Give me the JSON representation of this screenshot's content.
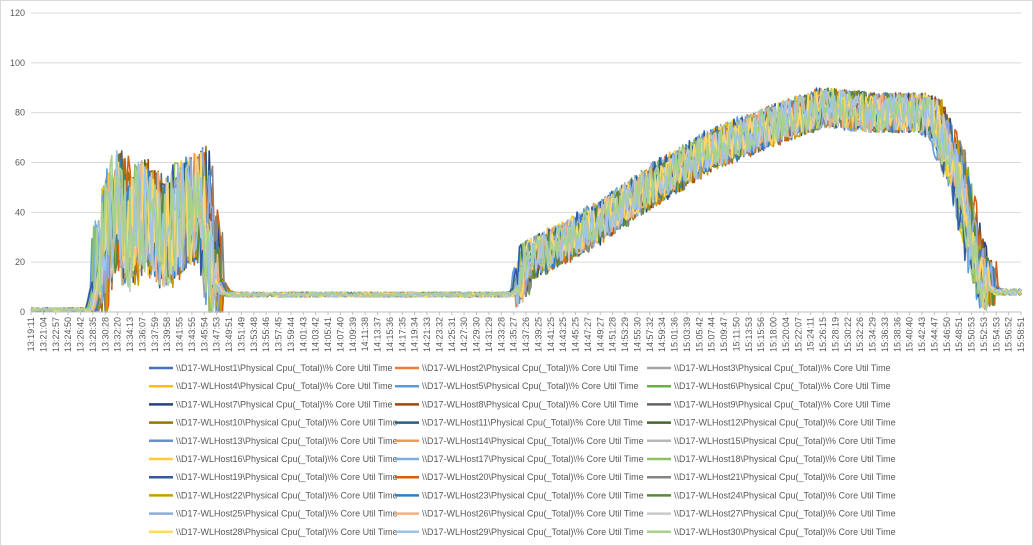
{
  "chart_data": {
    "type": "line",
    "title": "",
    "xlabel": "",
    "ylabel": "",
    "ylim": [
      0,
      120
    ],
    "yticks": [
      0,
      20,
      40,
      60,
      80,
      100,
      120
    ],
    "grid": "horizontal",
    "legend_position": "bottom",
    "x_tick_labels": [
      "13:19:11",
      "13:21:04",
      "13:22:57",
      "13:24:50",
      "13:26:42",
      "13:28:35",
      "13:30:28",
      "13:32:20",
      "13:34:13",
      "13:36:07",
      "13:37:59",
      "13:39:58",
      "13:41:55",
      "13:43:55",
      "13:45:54",
      "13:47:53",
      "13:49:51",
      "13:51:49",
      "13:53:48",
      "13:55:46",
      "13:57:45",
      "13:59:44",
      "14:01:43",
      "14:03:42",
      "14:05:41",
      "14:07:40",
      "14:09:39",
      "14:11:38",
      "14:13:37",
      "14:15:36",
      "14:17:35",
      "14:19:34",
      "14:21:33",
      "14:23:32",
      "14:25:31",
      "14:27:30",
      "14:29:30",
      "14:31:29",
      "14:33:28",
      "14:35:27",
      "14:37:26",
      "14:39:25",
      "14:41:25",
      "14:43:25",
      "14:45:25",
      "14:47:27",
      "14:49:27",
      "14:51:28",
      "14:53:29",
      "14:55:30",
      "14:57:32",
      "14:59:34",
      "15:01:36",
      "15:03:39",
      "15:05:42",
      "15:07:44",
      "15:09:47",
      "15:11:50",
      "15:13:53",
      "15:15:56",
      "15:18:00",
      "15:20:04",
      "15:22:07",
      "15:24:11",
      "15:26:15",
      "15:28:19",
      "15:30:22",
      "15:32:26",
      "15:34:29",
      "15:36:33",
      "15:38:36",
      "15:40:40",
      "15:42:43",
      "15:44:47",
      "15:46:50",
      "15:48:51",
      "15:50:53",
      "15:52:53",
      "15:54:53",
      "15:56:52",
      "15:58:51"
    ],
    "profile_points": [
      [
        0,
        1
      ],
      [
        5,
        1
      ],
      [
        6,
        25
      ],
      [
        7,
        45
      ],
      [
        8,
        30
      ],
      [
        9,
        40
      ],
      [
        10,
        35
      ],
      [
        11,
        30
      ],
      [
        12,
        38
      ],
      [
        13,
        40
      ],
      [
        14,
        45
      ],
      [
        14.7,
        15
      ],
      [
        15.5,
        8
      ],
      [
        16,
        7
      ],
      [
        39,
        7
      ],
      [
        39.6,
        10
      ],
      [
        40,
        20
      ],
      [
        45,
        33
      ],
      [
        50,
        50
      ],
      [
        55,
        65
      ],
      [
        60,
        75
      ],
      [
        64,
        82
      ],
      [
        68,
        80
      ],
      [
        72,
        80
      ],
      [
        73,
        78
      ],
      [
        75,
        55
      ],
      [
        76,
        30
      ],
      [
        77,
        12
      ],
      [
        78,
        8
      ],
      [
        80,
        8
      ]
    ],
    "series": [
      {
        "name": "\\\\D17-WLHost1\\Physical Cpu(_Total)\\% Core Util Time",
        "color": "#4472c4"
      },
      {
        "name": "\\\\D17-WLHost2\\Physical Cpu(_Total)\\% Core Util Time",
        "color": "#ed7d31"
      },
      {
        "name": "\\\\D17-WLHost3\\Physical Cpu(_Total)\\% Core Util Time",
        "color": "#a5a5a5"
      },
      {
        "name": "\\\\D17-WLHost4\\Physical Cpu(_Total)\\% Core Util Time",
        "color": "#ffc000"
      },
      {
        "name": "\\\\D17-WLHost5\\Physical Cpu(_Total)\\% Core Util Time",
        "color": "#5b9bd5"
      },
      {
        "name": "\\\\D17-WLHost6\\Physical Cpu(_Total)\\% Core Util Time",
        "color": "#70ad47"
      },
      {
        "name": "\\\\D17-WLHost7\\Physical Cpu(_Total)\\% Core Util Time",
        "color": "#264478"
      },
      {
        "name": "\\\\D17-WLHost8\\Physical Cpu(_Total)\\% Core Util Time",
        "color": "#9e480e"
      },
      {
        "name": "\\\\D17-WLHost9\\Physical Cpu(_Total)\\% Core Util Time",
        "color": "#636363"
      },
      {
        "name": "\\\\D17-WLHost10\\Physical Cpu(_Total)\\% Core Util Time",
        "color": "#997300"
      },
      {
        "name": "\\\\D17-WLHost11\\Physical Cpu(_Total)\\% Core Util Time",
        "color": "#255e91"
      },
      {
        "name": "\\\\D17-WLHost12\\Physical Cpu(_Total)\\% Core Util Time",
        "color": "#43682b"
      },
      {
        "name": "\\\\D17-WLHost13\\Physical Cpu(_Total)\\% Core Util Time",
        "color": "#698ed0"
      },
      {
        "name": "\\\\D17-WLHost14\\Physical Cpu(_Total)\\% Core Util Time",
        "color": "#f1975a"
      },
      {
        "name": "\\\\D17-WLHost15\\Physical Cpu(_Total)\\% Core Util Time",
        "color": "#b7b7b7"
      },
      {
        "name": "\\\\D17-WLHost16\\Physical Cpu(_Total)\\% Core Util Time",
        "color": "#ffcd33"
      },
      {
        "name": "\\\\D17-WLHost17\\Physical Cpu(_Total)\\% Core Util Time",
        "color": "#7cafdd"
      },
      {
        "name": "\\\\D17-WLHost18\\Physical Cpu(_Total)\\% Core Util Time",
        "color": "#8cc168"
      },
      {
        "name": "\\\\D17-WLHost19\\Physical Cpu(_Total)\\% Core Util Time",
        "color": "#335aa1"
      },
      {
        "name": "\\\\D17-WLHost20\\Physical Cpu(_Total)\\% Core Util Time",
        "color": "#d26012"
      },
      {
        "name": "\\\\D17-WLHost21\\Physical Cpu(_Total)\\% Core Util Time",
        "color": "#848484"
      },
      {
        "name": "\\\\D17-WLHost22\\Physical Cpu(_Total)\\% Core Util Time",
        "color": "#cc9a00"
      },
      {
        "name": "\\\\D17-WLHost23\\Physical Cpu(_Total)\\% Core Util Time",
        "color": "#2e7dc5"
      },
      {
        "name": "\\\\D17-WLHost24\\Physical Cpu(_Total)\\% Core Util Time",
        "color": "#5a8a39"
      },
      {
        "name": "\\\\D17-WLHost25\\Physical Cpu(_Total)\\% Core Util Time",
        "color": "#8faadc"
      },
      {
        "name": "\\\\D17-WLHost26\\Physical Cpu(_Total)\\% Core Util Time",
        "color": "#f4b183"
      },
      {
        "name": "\\\\D17-WLHost27\\Physical Cpu(_Total)\\% Core Util Time",
        "color": "#c9c9c9"
      },
      {
        "name": "\\\\D17-WLHost28\\Physical Cpu(_Total)\\% Core Util Time",
        "color": "#ffd966"
      },
      {
        "name": "\\\\D17-WLHost29\\Physical Cpu(_Total)\\% Core Util Time",
        "color": "#9dc3e6"
      },
      {
        "name": "\\\\D17-WLHost30\\Physical Cpu(_Total)\\% Core Util Time",
        "color": "#a9d18e"
      }
    ]
  }
}
